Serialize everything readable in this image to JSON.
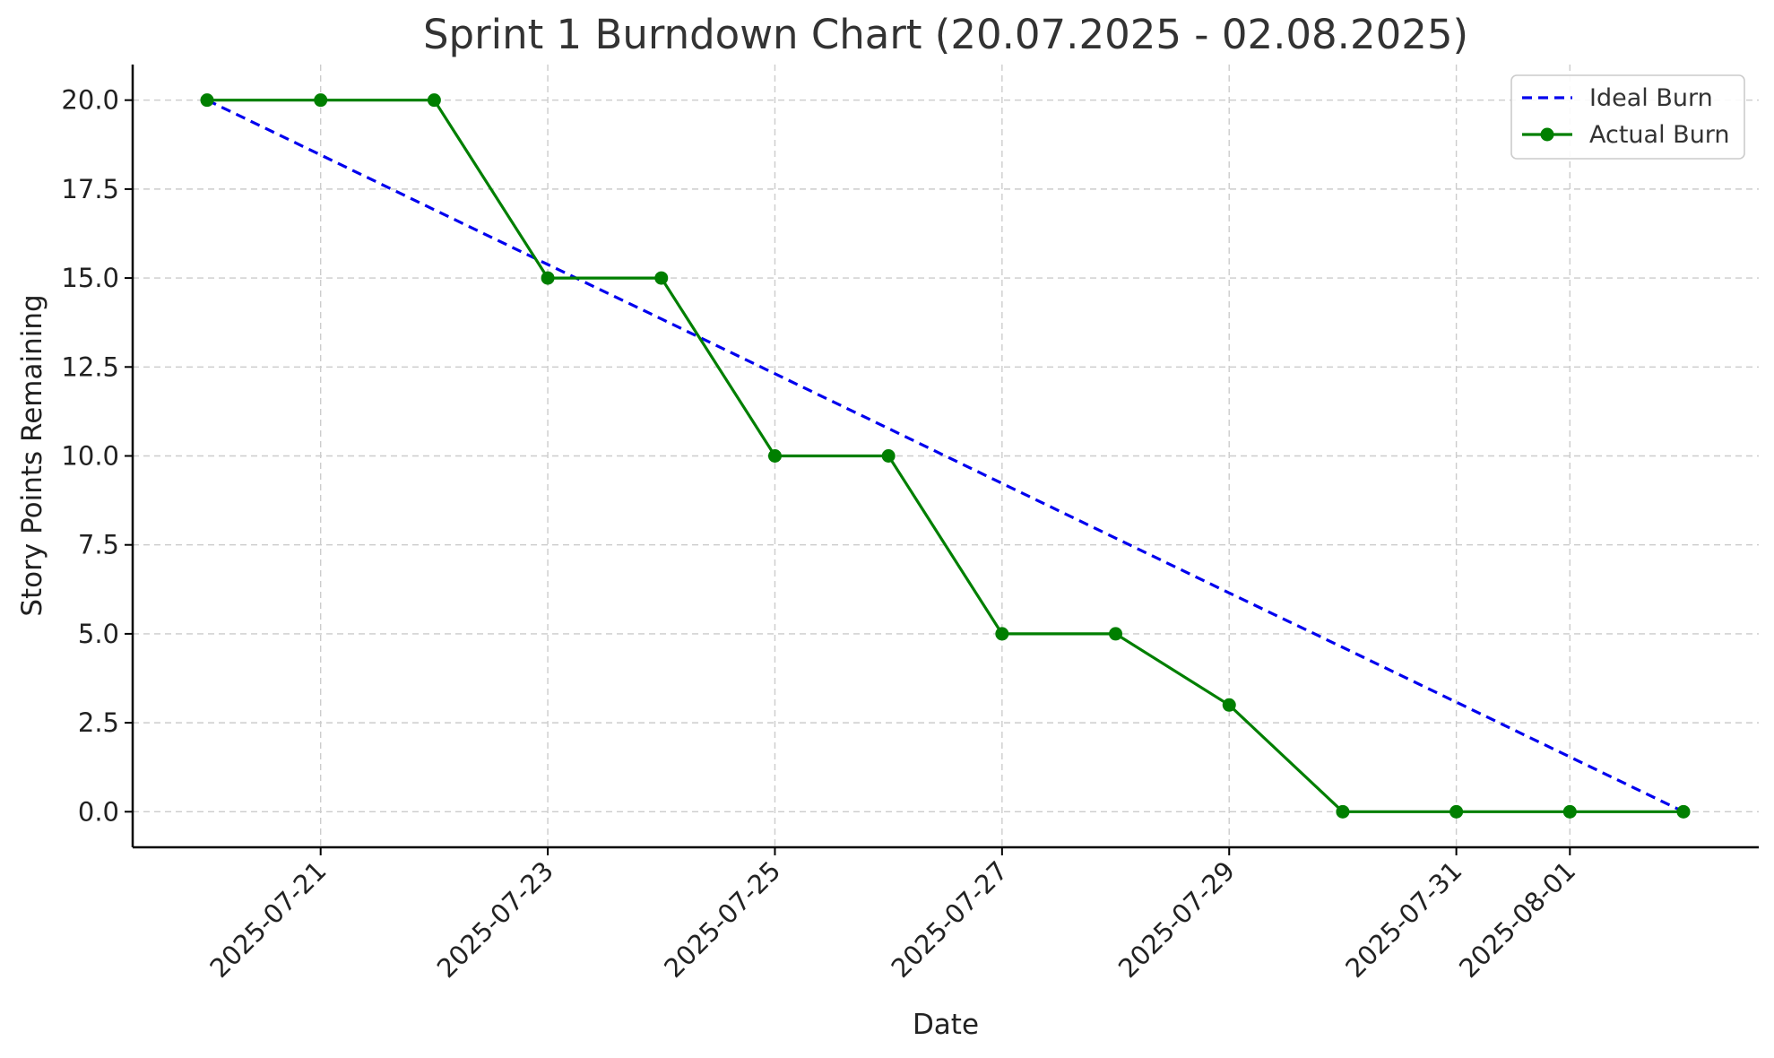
{
  "chart_data": {
    "type": "line",
    "title": "Sprint 1 Burndown Chart (20.07.2025 - 02.08.2025)",
    "xlabel": "Date",
    "ylabel": "Story Points Remaining",
    "x": [
      "2025-07-20",
      "2025-07-21",
      "2025-07-22",
      "2025-07-23",
      "2025-07-24",
      "2025-07-25",
      "2025-07-26",
      "2025-07-27",
      "2025-07-28",
      "2025-07-29",
      "2025-07-30",
      "2025-07-31",
      "2025-08-01",
      "2025-08-02"
    ],
    "x_ticks": [
      "2025-07-21",
      "2025-07-23",
      "2025-07-25",
      "2025-07-27",
      "2025-07-29",
      "2025-07-31",
      "2025-08-01"
    ],
    "y_ticks": [
      "0.0",
      "2.5",
      "5.0",
      "7.5",
      "10.0",
      "12.5",
      "15.0",
      "17.5",
      "20.0"
    ],
    "ylim": [
      -1,
      21
    ],
    "grid": true,
    "legend_position": "top-right",
    "series": [
      {
        "name": "Ideal Burn",
        "style": "dashed",
        "color": "#0000ee",
        "marker": false,
        "values": [
          20.0,
          18.46,
          16.92,
          15.38,
          13.85,
          12.31,
          10.77,
          9.23,
          7.69,
          6.15,
          4.62,
          3.08,
          1.54,
          0.0
        ]
      },
      {
        "name": "Actual Burn",
        "style": "solid",
        "color": "#007f00",
        "marker": true,
        "values": [
          20,
          20,
          20,
          15,
          15,
          10,
          10,
          5,
          5,
          3,
          0,
          0,
          0,
          0
        ]
      }
    ]
  }
}
